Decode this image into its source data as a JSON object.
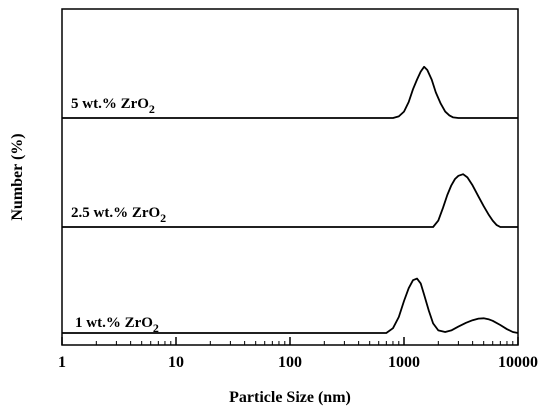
{
  "chart_data": {
    "type": "line",
    "title": "",
    "xlabel": "Particle Size (nm)",
    "ylabel": "Number (%)",
    "x_scale": "log",
    "xlim": [
      1,
      10000
    ],
    "x_ticks": [
      1,
      10,
      100,
      1000,
      10000
    ],
    "x_tick_labels": [
      "1",
      "10",
      "100",
      "1000",
      "10000"
    ],
    "y_ticks": [],
    "grid": false,
    "legend": "none",
    "stacked_offset": true,
    "series": [
      {
        "name": "5 wt.% ZrO2",
        "label_main": "5 wt.% ZrO",
        "label_sub": "2",
        "x": [
          800,
          900,
          1000,
          1100,
          1200,
          1300,
          1400,
          1500,
          1600,
          1750,
          1900,
          2100,
          2300,
          2500,
          2700,
          3000
        ],
        "y": [
          0,
          0.5,
          2,
          5,
          9,
          12,
          14.5,
          16,
          15,
          12,
          8,
          4.5,
          2,
          0.8,
          0.2,
          0
        ]
      },
      {
        "name": "2.5 wt.% ZrO2",
        "label_main": "2.5 wt.% ZrO",
        "label_sub": "2",
        "x": [
          1800,
          2000,
          2200,
          2400,
          2600,
          2800,
          3000,
          3300,
          3600,
          4000,
          4500,
          5000,
          5500,
          6000,
          6500,
          7000
        ],
        "y": [
          0,
          2,
          6,
          10,
          13,
          15,
          16,
          16.5,
          15.5,
          13,
          9.5,
          6.5,
          4,
          2,
          0.6,
          0
        ]
      },
      {
        "name": "1 wt.% ZrO2",
        "label_main": "1 wt.% ZrO",
        "label_sub": "2",
        "x": [
          700,
          800,
          900,
          1000,
          1100,
          1200,
          1300,
          1400,
          1500,
          1650,
          1800,
          2000,
          2300,
          2600,
          3000,
          3500,
          4000,
          4500,
          5000,
          5500,
          6000,
          7000,
          8000,
          9000,
          10000
        ],
        "y": [
          0,
          1.5,
          5,
          10,
          14,
          16.5,
          17,
          15.5,
          12,
          7,
          3,
          0.8,
          0.3,
          0.8,
          2,
          3.2,
          4,
          4.5,
          4.6,
          4.3,
          3.8,
          2.5,
          1.2,
          0.3,
          0
        ]
      }
    ]
  }
}
